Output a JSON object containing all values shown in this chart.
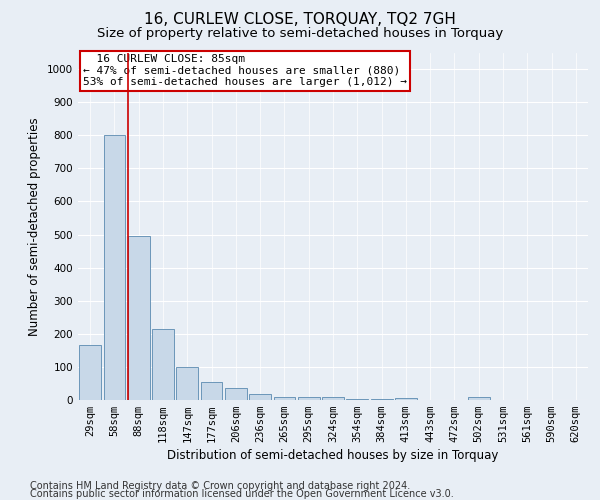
{
  "title": "16, CURLEW CLOSE, TORQUAY, TQ2 7GH",
  "subtitle": "Size of property relative to semi-detached houses in Torquay",
  "xlabel": "Distribution of semi-detached houses by size in Torquay",
  "ylabel": "Number of semi-detached properties",
  "footer_line1": "Contains HM Land Registry data © Crown copyright and database right 2024.",
  "footer_line2": "Contains public sector information licensed under the Open Government Licence v3.0.",
  "categories": [
    "29sqm",
    "58sqm",
    "88sqm",
    "118sqm",
    "147sqm",
    "177sqm",
    "206sqm",
    "236sqm",
    "265sqm",
    "295sqm",
    "324sqm",
    "354sqm",
    "384sqm",
    "413sqm",
    "443sqm",
    "472sqm",
    "502sqm",
    "531sqm",
    "561sqm",
    "590sqm",
    "620sqm"
  ],
  "values": [
    165,
    800,
    495,
    215,
    100,
    55,
    35,
    18,
    10,
    10,
    8,
    2,
    2,
    5,
    0,
    0,
    10,
    0,
    0,
    0,
    0
  ],
  "bar_color": "#c8d8e8",
  "bar_edge_color": "#5a8ab0",
  "red_line_index": 2.0,
  "annotation_box_color": "#ffffff",
  "annotation_box_edge": "#cc0000",
  "property_label": "16 CURLEW CLOSE: 85sqm",
  "pct_smaller": 47,
  "count_smaller": 880,
  "pct_larger": 53,
  "count_larger": "1,012",
  "ylim": [
    0,
    1050
  ],
  "yticks": [
    0,
    100,
    200,
    300,
    400,
    500,
    600,
    700,
    800,
    900,
    1000
  ],
  "background_color": "#e8eef5",
  "plot_bg_color": "#e8eef5",
  "grid_color": "#ffffff",
  "title_fontsize": 11,
  "subtitle_fontsize": 9.5,
  "axis_label_fontsize": 8.5,
  "tick_fontsize": 7.5,
  "annotation_fontsize": 8,
  "footer_fontsize": 7
}
